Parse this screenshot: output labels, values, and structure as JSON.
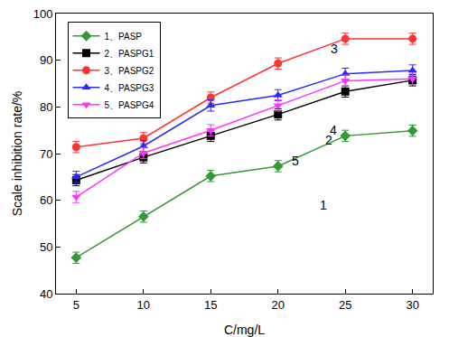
{
  "chart_data": {
    "type": "line",
    "x_label": "C/mg/L",
    "y_label": "Scale inhibition rate/%",
    "x": [
      5,
      10,
      15,
      20,
      25,
      30
    ],
    "xlim": [
      3.5,
      31.5
    ],
    "xticks": [
      5,
      10,
      15,
      20,
      25,
      30
    ],
    "ylim": [
      40,
      100
    ],
    "yticks": [
      40,
      50,
      60,
      70,
      80,
      90,
      100
    ],
    "grid": false,
    "legend": "upper left",
    "series": [
      {
        "name": "1、PASP",
        "color": "#339933",
        "marker": "diamond",
        "values": [
          47.7,
          56.5,
          65.2,
          67.3,
          73.8,
          74.9
        ],
        "errors": [
          1.2,
          1.2,
          1.2,
          1.2,
          1.2,
          1.2
        ]
      },
      {
        "name": "2、PASPG1",
        "color": "#000000",
        "marker": "square",
        "values": [
          64.3,
          69.2,
          73.8,
          78.4,
          83.3,
          85.7
        ],
        "errors": [
          1.2,
          1.2,
          1.2,
          1.2,
          1.2,
          1.2
        ]
      },
      {
        "name": "3、PASPG2",
        "color": "#ff3333",
        "marker": "circle",
        "values": [
          71.4,
          73.3,
          82.0,
          89.3,
          94.6,
          94.6
        ],
        "errors": [
          1.2,
          1.2,
          1.2,
          1.2,
          1.2,
          1.2
        ]
      },
      {
        "name": "4、PASPG3",
        "color": "#2a2aff",
        "marker": "triangle-up",
        "values": [
          65.0,
          71.6,
          80.3,
          82.5,
          87.1,
          87.8
        ],
        "errors": [
          1.2,
          1.2,
          1.2,
          1.2,
          1.2,
          1.2
        ]
      },
      {
        "name": "5、PASPG4",
        "color": "#ff33ff",
        "marker": "triangle-down",
        "values": [
          60.7,
          70.1,
          75.0,
          80.3,
          85.6,
          86.0
        ],
        "errors": [
          1.2,
          1.2,
          1.2,
          1.2,
          1.2,
          1.2
        ]
      }
    ],
    "annotations": [
      {
        "text": "1",
        "x": 23.4,
        "y": 59.0
      },
      {
        "text": "2",
        "x": 23.8,
        "y": 72.9
      },
      {
        "text": "3",
        "x": 24.2,
        "y": 92.4
      },
      {
        "text": "4",
        "x": 24.1,
        "y": 75.0
      },
      {
        "text": "5",
        "x": 21.3,
        "y": 68.4
      }
    ]
  }
}
